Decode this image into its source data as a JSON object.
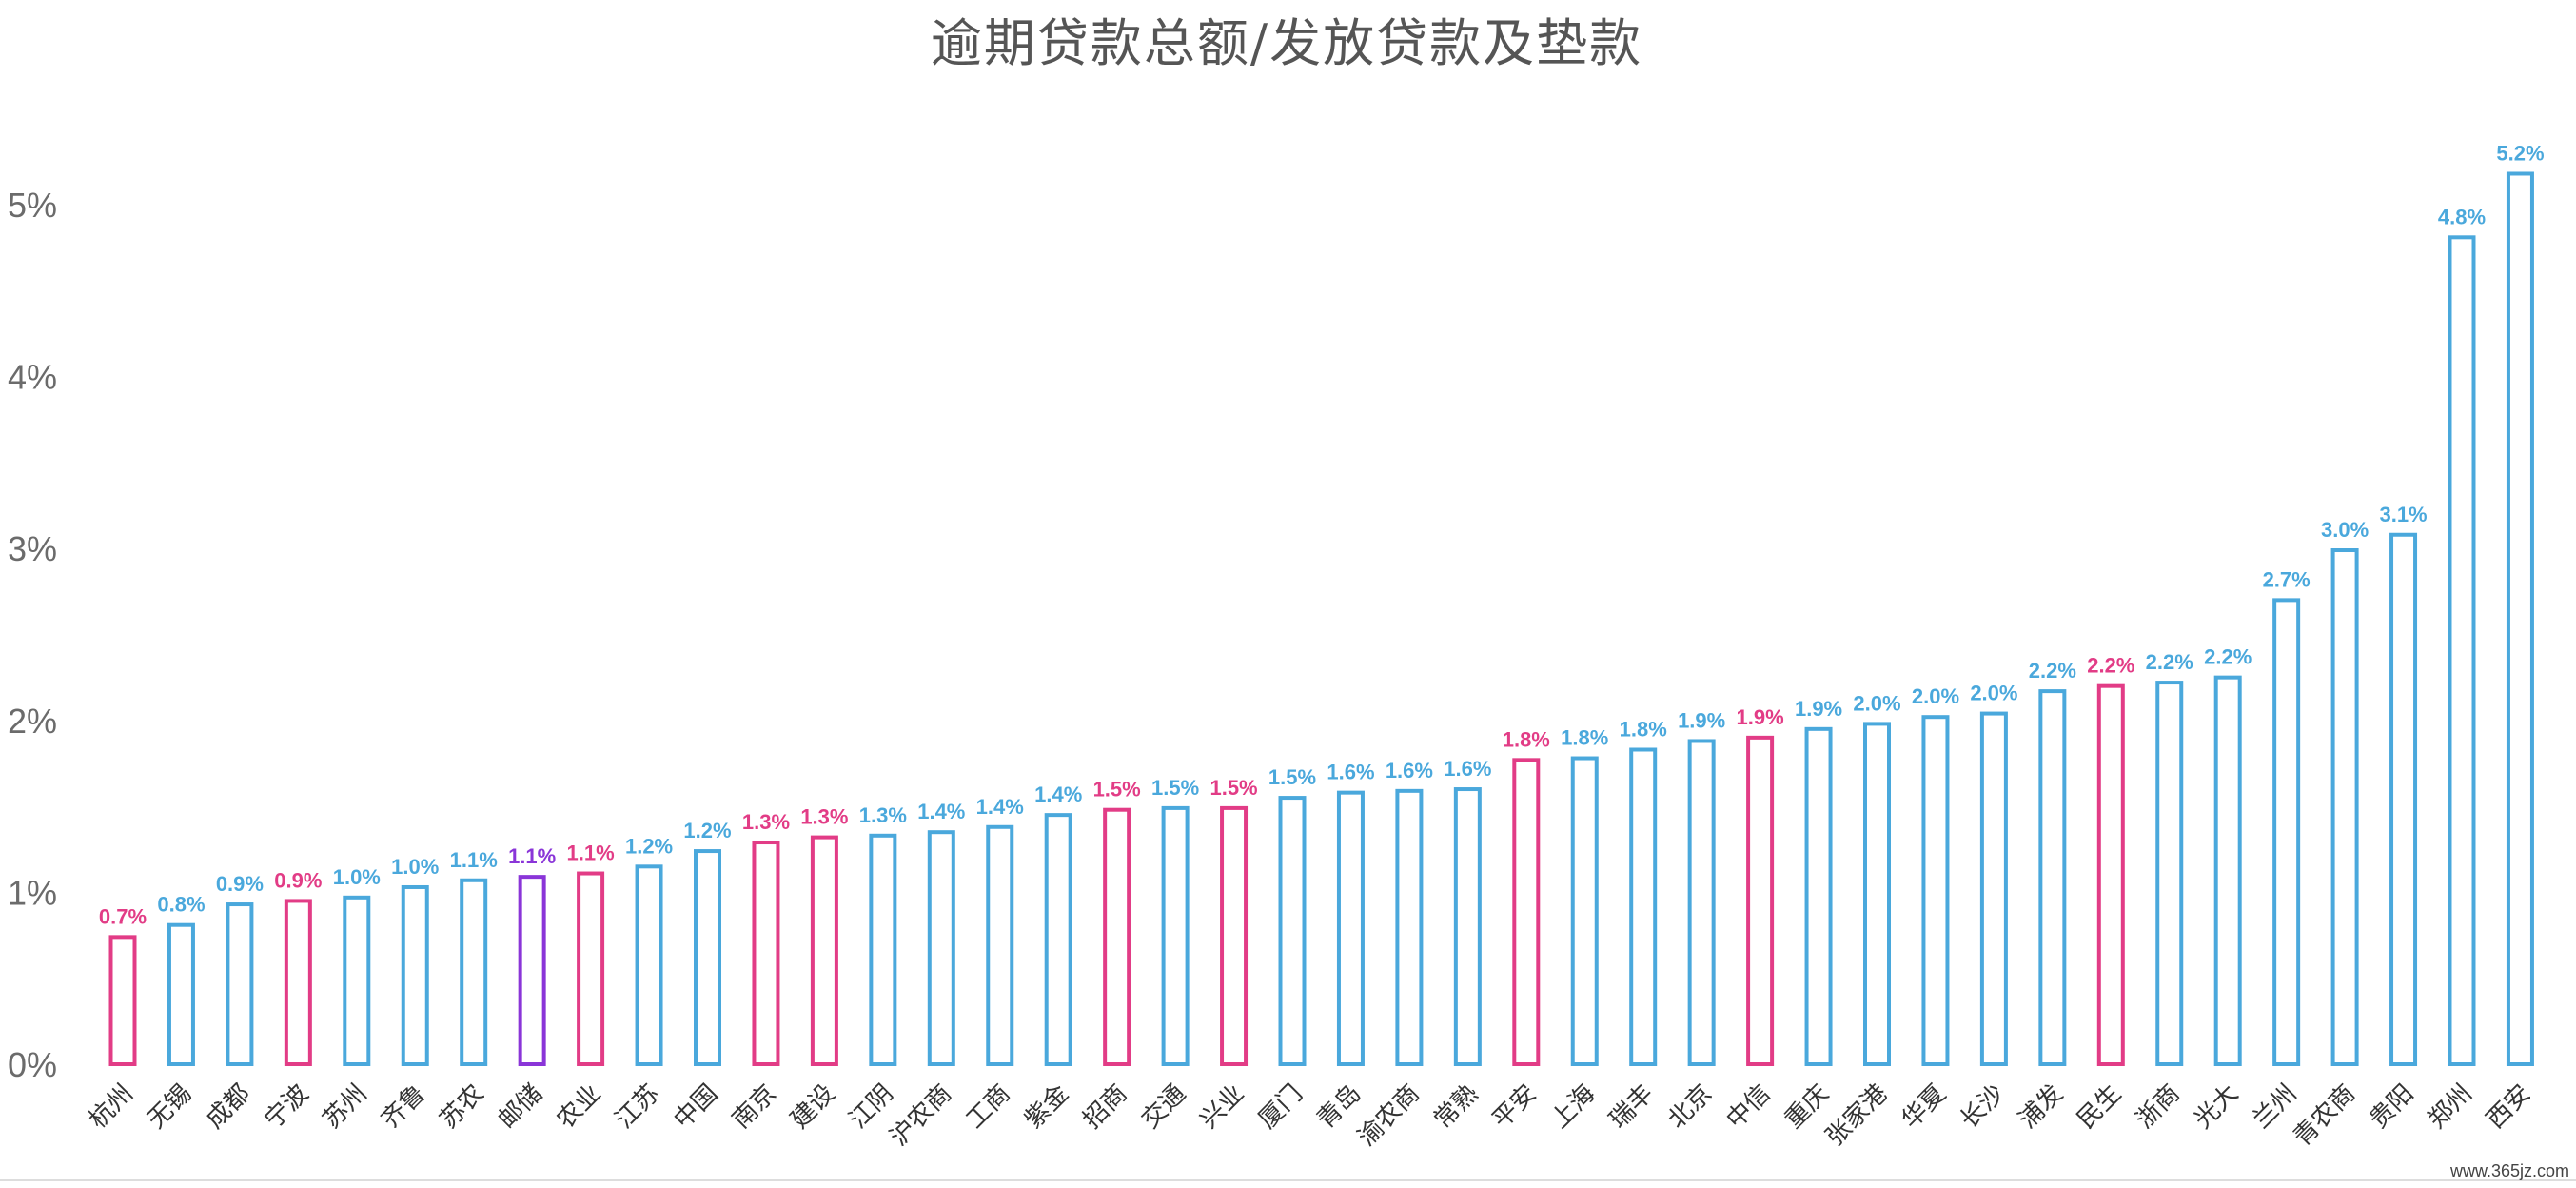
{
  "chart_data": {
    "type": "bar",
    "title": "逾期贷款总额/发放贷款及垫款",
    "xlabel": "",
    "ylabel": "",
    "ylim": [
      0,
      5.5
    ],
    "yticks": [
      "0%",
      "1%",
      "2%",
      "3%",
      "4%",
      "5%"
    ],
    "grid": false,
    "categories": [
      "杭州",
      "无锡",
      "成都",
      "宁波",
      "苏州",
      "齐鲁",
      "苏农",
      "邮储",
      "农业",
      "江苏",
      "中国",
      "南京",
      "建设",
      "江阴",
      "沪农商",
      "工商",
      "紫金",
      "招商",
      "交通",
      "兴业",
      "厦门",
      "青岛",
      "渝农商",
      "常熟",
      "平安",
      "上海",
      "瑞丰",
      "北京",
      "中信",
      "重庆",
      "张家港",
      "华夏",
      "长沙",
      "浦发",
      "民生",
      "浙商",
      "光大",
      "兰州",
      "青农商",
      "贵阳",
      "郑州",
      "西安"
    ],
    "values": [
      0.74,
      0.81,
      0.93,
      0.95,
      0.97,
      1.03,
      1.07,
      1.09,
      1.11,
      1.15,
      1.24,
      1.29,
      1.32,
      1.33,
      1.35,
      1.38,
      1.45,
      1.48,
      1.49,
      1.49,
      1.55,
      1.58,
      1.59,
      1.6,
      1.77,
      1.78,
      1.83,
      1.88,
      1.9,
      1.95,
      1.98,
      2.02,
      2.04,
      2.17,
      2.2,
      2.22,
      2.25,
      2.7,
      2.99,
      3.08,
      4.81,
      5.18
    ],
    "labels": [
      "0.7%",
      "0.8%",
      "0.9%",
      "0.9%",
      "1.0%",
      "1.0%",
      "1.1%",
      "1.1%",
      "1.1%",
      "1.2%",
      "1.2%",
      "1.3%",
      "1.3%",
      "1.3%",
      "1.4%",
      "1.4%",
      "1.4%",
      "1.5%",
      "1.5%",
      "1.5%",
      "1.5%",
      "1.6%",
      "1.6%",
      "1.6%",
      "1.8%",
      "1.8%",
      "1.8%",
      "1.9%",
      "1.9%",
      "1.9%",
      "2.0%",
      "2.0%",
      "2.0%",
      "2.2%",
      "2.2%",
      "2.2%",
      "2.2%",
      "2.7%",
      "3.0%",
      "3.1%",
      "4.8%",
      "5.2%"
    ],
    "colors": [
      "pink",
      "blue",
      "blue",
      "pink",
      "blue",
      "blue",
      "blue",
      "purple",
      "pink",
      "blue",
      "blue",
      "pink",
      "pink",
      "blue",
      "blue",
      "blue",
      "blue",
      "pink",
      "blue",
      "pink",
      "blue",
      "blue",
      "blue",
      "blue",
      "pink",
      "blue",
      "blue",
      "blue",
      "pink",
      "blue",
      "blue",
      "blue",
      "blue",
      "blue",
      "pink",
      "blue",
      "blue",
      "blue",
      "blue",
      "blue",
      "blue",
      "blue"
    ],
    "palette": {
      "blue": "#4aa8dc",
      "pink": "#e23c86",
      "purple": "#8a35d8"
    }
  },
  "watermark": "www.365jz.com"
}
